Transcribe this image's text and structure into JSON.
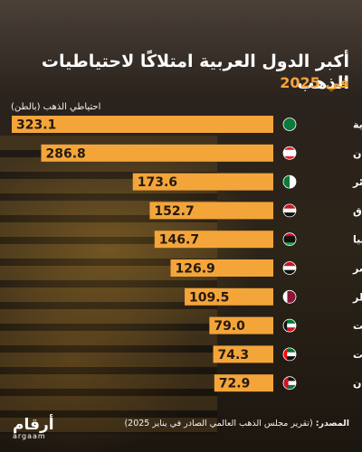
{
  "colors": {
    "bar": "#f4a53a",
    "accent": "#f4a53a",
    "value_text": "#231a10",
    "label_text": "#ffffff"
  },
  "header": {
    "title": "أكبر الدول العربية امتلاكًا لاحتياطيات الذهب",
    "subtitle": "في 2025"
  },
  "footer": {
    "source_label": "المصدر:",
    "source_text": "(تقرير مجلس الذهب العالمي الصادر في يناير 2025)",
    "brand_ar": "أرقام",
    "brand_en": "argaam"
  },
  "chart_data": {
    "type": "bar",
    "orientation": "horizontal",
    "ylabel": "احتياطي الذهب (بالطن)",
    "categories": [
      "السعودية",
      "لبنان",
      "الجزائر",
      "العراق",
      "ليبيا",
      "مصر",
      "قطر",
      "الكويت",
      "الإمارات",
      "الأردن"
    ],
    "values": [
      323.1,
      286.8,
      173.6,
      152.7,
      146.7,
      126.9,
      109.5,
      79.0,
      74.3,
      72.9
    ],
    "value_labels": [
      "323.1",
      "286.8",
      "173.6",
      "152.7",
      "146.7",
      "126.9",
      "109.5",
      "79.0",
      "74.3",
      "72.9"
    ],
    "flags": [
      "saudi-arabia-flag",
      "lebanon-flag",
      "algeria-flag",
      "iraq-flag",
      "libya-flag",
      "egypt-flag",
      "qatar-flag",
      "kuwait-flag",
      "uae-flag",
      "jordan-flag"
    ],
    "xlim": [
      0,
      323.1
    ],
    "grid": false
  }
}
